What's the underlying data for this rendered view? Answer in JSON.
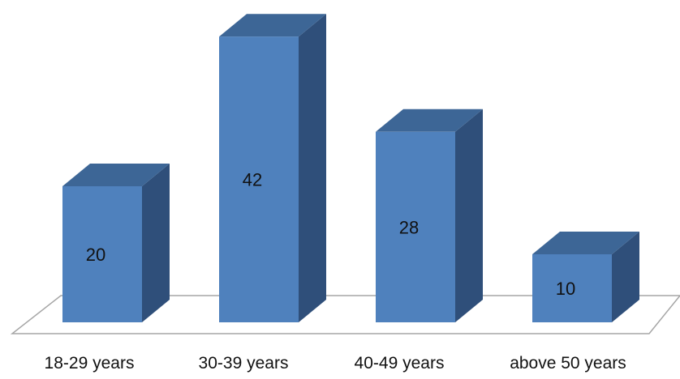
{
  "chart_data": {
    "type": "bar",
    "categories": [
      "18-29 years",
      "30-39 years",
      "40-49 years",
      "above 50 years"
    ],
    "values": [
      20,
      42,
      28,
      10
    ],
    "data_labels": [
      "20",
      "42",
      "28",
      "10"
    ],
    "title": "",
    "xlabel": "",
    "ylabel": "",
    "ylim": [
      0,
      42
    ],
    "grid": false,
    "legend": "none",
    "style": "3d-column"
  },
  "colors": {
    "bar_front": "#4f81bd",
    "bar_top": "#3d6696",
    "bar_side": "#2f4f7a",
    "floor_stroke": "#a6a6a6"
  }
}
